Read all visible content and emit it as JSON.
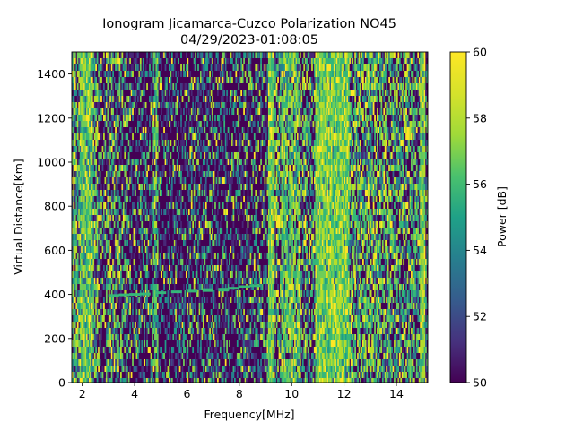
{
  "chart_data": {
    "type": "heatmap",
    "title": "Ionogram Jicamarca-Cuzco Polarization NO45",
    "subtitle": "04/29/2023-01:08:05",
    "xlabel": "Frequency[MHz]",
    "ylabel": "Virtual Distance[Km]",
    "xlim": [
      1.6,
      15.2
    ],
    "ylim": [
      0,
      1500
    ],
    "xticks": [
      2,
      4,
      6,
      8,
      10,
      12,
      14
    ],
    "yticks": [
      0,
      200,
      400,
      600,
      800,
      1000,
      1200,
      1400
    ],
    "colorbar": {
      "label": "Power [dB]",
      "range": [
        50,
        60
      ],
      "ticks": [
        50,
        52,
        54,
        56,
        58,
        60
      ],
      "colormap": "viridis"
    },
    "frequency_bands": [
      {
        "from": 1.6,
        "to": 1.9,
        "level": 0.55
      },
      {
        "from": 1.9,
        "to": 2.4,
        "level": 0.85
      },
      {
        "from": 2.4,
        "to": 2.6,
        "level": 0.45
      },
      {
        "from": 2.6,
        "to": 2.9,
        "level": 0.25
      },
      {
        "from": 2.9,
        "to": 3.3,
        "level": 0.35
      },
      {
        "from": 3.3,
        "to": 3.8,
        "level": 0.3
      },
      {
        "from": 3.8,
        "to": 4.7,
        "level": 0.15
      },
      {
        "from": 4.7,
        "to": 4.9,
        "level": 0.6
      },
      {
        "from": 4.9,
        "to": 6.0,
        "level": 0.1
      },
      {
        "from": 6.0,
        "to": 7.2,
        "level": 0.18
      },
      {
        "from": 7.2,
        "to": 8.4,
        "level": 0.14
      },
      {
        "from": 8.4,
        "to": 9.1,
        "level": 0.2
      },
      {
        "from": 9.1,
        "to": 9.3,
        "level": 1.0
      },
      {
        "from": 9.3,
        "to": 9.6,
        "level": 0.4
      },
      {
        "from": 9.6,
        "to": 10.3,
        "level": 0.7
      },
      {
        "from": 10.3,
        "to": 10.6,
        "level": 0.35
      },
      {
        "from": 10.6,
        "to": 10.9,
        "level": 0.3
      },
      {
        "from": 10.9,
        "to": 12.2,
        "level": 0.95
      },
      {
        "from": 12.2,
        "to": 12.5,
        "level": 0.5
      },
      {
        "from": 12.5,
        "to": 13.2,
        "level": 0.55
      },
      {
        "from": 13.2,
        "to": 13.9,
        "level": 0.45
      },
      {
        "from": 13.9,
        "to": 14.9,
        "level": 0.4
      },
      {
        "from": 14.9,
        "to": 15.1,
        "level": 0.95
      },
      {
        "from": 15.1,
        "to": 15.2,
        "level": 0.3
      }
    ],
    "echo_trace": {
      "x": [
        3.2,
        3.6,
        4.0,
        4.4,
        5.0,
        5.6,
        6.2,
        6.8,
        7.4,
        7.8,
        8.2,
        8.6
      ],
      "y": [
        395,
        398,
        400,
        402,
        408,
        412,
        415,
        418,
        420,
        428,
        435,
        440
      ]
    }
  }
}
